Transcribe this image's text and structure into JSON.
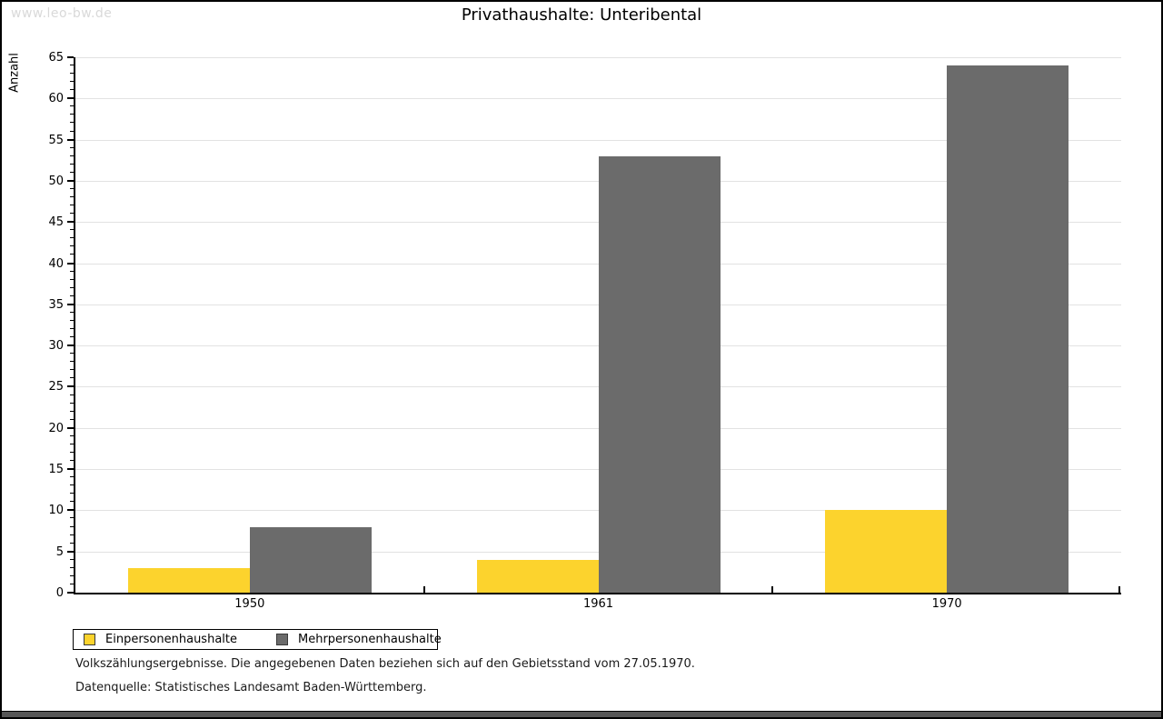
{
  "page": {
    "watermark": "www.leo-bw.de",
    "title": "Privathaushalte: Unteribental"
  },
  "footer": {
    "line1": "Volkszählungsergebnisse. Die angegebenen Daten beziehen sich auf den Gebietsstand vom 27.05.1970.",
    "line2": "Datenquelle: Statistisches Landesamt Baden-Württemberg."
  },
  "colors": {
    "series1": "#FCD32D",
    "series2": "#6B6B6B",
    "gridline": "#E2E2E2",
    "axis": "#000000",
    "watermark": "#D9D9D9",
    "bottom_bar": "#575757"
  },
  "chart_data": {
    "type": "bar",
    "title": "Privathaushalte: Unteribental",
    "categories": [
      "1950",
      "1961",
      "1970"
    ],
    "series": [
      {
        "name": "Einpersonenhaushalte",
        "color": "#FCD32D",
        "values": [
          3,
          4,
          10
        ]
      },
      {
        "name": "Mehrpersonenhaushalte",
        "color": "#6B6B6B",
        "values": [
          8,
          53,
          64
        ]
      }
    ],
    "xlabel": "",
    "ylabel": "Anzahl",
    "ylim": [
      0,
      65
    ],
    "ytick_major": 5,
    "ytick_minor": 1,
    "grid": true,
    "legend_position": "bottom-left"
  }
}
